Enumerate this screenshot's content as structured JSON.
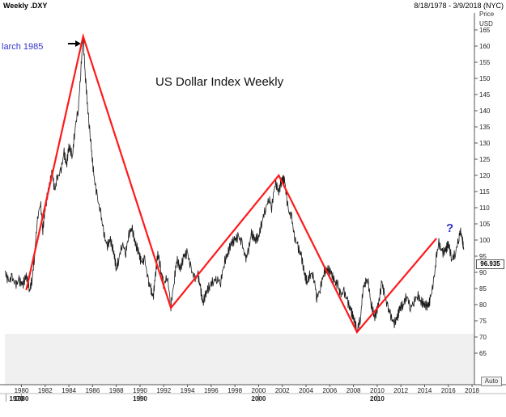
{
  "header": {
    "title": "Weekly .DXY",
    "date_range": "8/18/1978 - 3/9/2018 (NYC)"
  },
  "axis_labels": {
    "price": "Price",
    "currency": "USD"
  },
  "controls": {
    "auto_label": "Auto"
  },
  "current_value": "96.935",
  "colors": {
    "price_line": "#1a1a1a",
    "trend_line": "#ff1a1a",
    "annotation_blue": "#3333cc",
    "shade": "#f0f0f0"
  },
  "chart_data": {
    "type": "line",
    "title": "US Dollar Index Weekly",
    "xlim": [
      1978.6,
      2018.2
    ],
    "ylim": [
      62,
      170
    ],
    "y_ticks": [
      65,
      70,
      75,
      80,
      85,
      90,
      95,
      100,
      105,
      110,
      115,
      120,
      125,
      130,
      135,
      140,
      145,
      150,
      155,
      160,
      165
    ],
    "x_ticks": [
      "1980",
      "1982",
      "1984",
      "1986",
      "1988",
      "1990",
      "1992",
      "1994",
      "1996",
      "1998",
      "2000",
      "2002",
      "2004",
      "2006",
      "2008",
      "2010",
      "2012",
      "2014",
      "2016",
      "2018"
    ],
    "decade_labels": [
      {
        "year": "1970",
        "x": 1978.7
      },
      {
        "year": "1980",
        "x": 1980.0
      },
      {
        "year": "1990",
        "x": 1990.0
      },
      {
        "year": "2000",
        "x": 2000.0
      },
      {
        "year": "2010",
        "x": 2010.0
      }
    ],
    "series": [
      {
        "values": [
          [
            1978.6,
            90.5
          ],
          [
            1978.9,
            87
          ],
          [
            1979.2,
            88.5
          ],
          [
            1979.5,
            86
          ],
          [
            1979.8,
            87.5
          ],
          [
            1980.1,
            86
          ],
          [
            1980.4,
            89
          ],
          [
            1980.7,
            84.5
          ],
          [
            1980.9,
            88
          ],
          [
            1981.1,
            95
          ],
          [
            1981.3,
            105
          ],
          [
            1981.6,
            112
          ],
          [
            1981.8,
            103
          ],
          [
            1982.0,
            110
          ],
          [
            1982.3,
            116
          ],
          [
            1982.6,
            121
          ],
          [
            1982.8,
            115
          ],
          [
            1983.0,
            119
          ],
          [
            1983.3,
            121
          ],
          [
            1983.6,
            127
          ],
          [
            1983.8,
            123
          ],
          [
            1984.0,
            129
          ],
          [
            1984.3,
            126
          ],
          [
            1984.5,
            134
          ],
          [
            1984.8,
            141
          ],
          [
            1985.0,
            152
          ],
          [
            1985.2,
            163
          ],
          [
            1985.4,
            150
          ],
          [
            1985.6,
            140
          ],
          [
            1985.9,
            128
          ],
          [
            1986.1,
            120
          ],
          [
            1986.4,
            113
          ],
          [
            1986.7,
            108
          ],
          [
            1986.9,
            103
          ],
          [
            1987.2,
            98
          ],
          [
            1987.5,
            100
          ],
          [
            1987.8,
            96
          ],
          [
            1988.0,
            91
          ],
          [
            1988.2,
            94
          ],
          [
            1988.5,
            99
          ],
          [
            1988.8,
            96
          ],
          [
            1989.0,
            101
          ],
          [
            1989.3,
            104
          ],
          [
            1989.6,
            99
          ],
          [
            1989.9,
            96
          ],
          [
            1990.1,
            93
          ],
          [
            1990.4,
            94
          ],
          [
            1990.7,
            87
          ],
          [
            1990.9,
            85
          ],
          [
            1991.1,
            82
          ],
          [
            1991.3,
            89
          ],
          [
            1991.5,
            96
          ],
          [
            1991.8,
            90
          ],
          [
            1992.0,
            86
          ],
          [
            1992.3,
            89
          ],
          [
            1992.6,
            79.5
          ],
          [
            1992.9,
            88
          ],
          [
            1993.1,
            94
          ],
          [
            1993.4,
            91
          ],
          [
            1993.7,
            95
          ],
          [
            1994.0,
            96
          ],
          [
            1994.3,
            91
          ],
          [
            1994.6,
            88
          ],
          [
            1994.9,
            89
          ],
          [
            1995.1,
            85
          ],
          [
            1995.3,
            80.5
          ],
          [
            1995.6,
            84
          ],
          [
            1995.9,
            86
          ],
          [
            1996.2,
            87.5
          ],
          [
            1996.5,
            88
          ],
          [
            1996.8,
            87
          ],
          [
            1997.1,
            93
          ],
          [
            1997.4,
            96
          ],
          [
            1997.7,
            99
          ],
          [
            1998.0,
            100
          ],
          [
            1998.3,
            101
          ],
          [
            1998.6,
            99
          ],
          [
            1998.9,
            94
          ],
          [
            1999.1,
            96
          ],
          [
            1999.4,
            102
          ],
          [
            1999.7,
            100
          ],
          [
            2000.0,
            101
          ],
          [
            2000.3,
            106
          ],
          [
            2000.6,
            110
          ],
          [
            2000.9,
            113
          ],
          [
            2001.1,
            110
          ],
          [
            2001.4,
            118
          ],
          [
            2001.7,
            115
          ],
          [
            2002.0,
            119
          ],
          [
            2002.2,
            118
          ],
          [
            2002.5,
            109
          ],
          [
            2002.8,
            107
          ],
          [
            2003.0,
            101
          ],
          [
            2003.3,
            98
          ],
          [
            2003.6,
            95
          ],
          [
            2003.9,
            89
          ],
          [
            2004.1,
            87
          ],
          [
            2004.4,
            90
          ],
          [
            2004.7,
            88
          ],
          [
            2004.9,
            82
          ],
          [
            2005.2,
            85
          ],
          [
            2005.5,
            90
          ],
          [
            2005.8,
            91
          ],
          [
            2006.1,
            90
          ],
          [
            2006.4,
            87
          ],
          [
            2006.7,
            86
          ],
          [
            2006.9,
            83
          ],
          [
            2007.2,
            84
          ],
          [
            2007.5,
            81
          ],
          [
            2007.8,
            78
          ],
          [
            2008.0,
            76
          ],
          [
            2008.3,
            72
          ],
          [
            2008.6,
            76
          ],
          [
            2008.8,
            85
          ],
          [
            2009.0,
            87
          ],
          [
            2009.2,
            88
          ],
          [
            2009.5,
            80
          ],
          [
            2009.8,
            76
          ],
          [
            2010.1,
            80
          ],
          [
            2010.4,
            87
          ],
          [
            2010.6,
            83
          ],
          [
            2010.9,
            79
          ],
          [
            2011.1,
            77
          ],
          [
            2011.4,
            74
          ],
          [
            2011.7,
            76
          ],
          [
            2011.9,
            79
          ],
          [
            2012.2,
            80
          ],
          [
            2012.5,
            83
          ],
          [
            2012.8,
            79
          ],
          [
            2013.1,
            81
          ],
          [
            2013.4,
            83
          ],
          [
            2013.7,
            81
          ],
          [
            2014.0,
            80
          ],
          [
            2014.3,
            79.5
          ],
          [
            2014.5,
            82
          ],
          [
            2014.8,
            88
          ],
          [
            2015.0,
            95
          ],
          [
            2015.2,
            99
          ],
          [
            2015.5,
            96
          ],
          [
            2015.8,
            97
          ],
          [
            2016.0,
            99
          ],
          [
            2016.3,
            94
          ],
          [
            2016.6,
            96
          ],
          [
            2016.9,
            101
          ],
          [
            2017.0,
            103
          ],
          [
            2017.2,
            100
          ],
          [
            2017.3,
            97
          ]
        ]
      },
      {
        "values": [
          [
            1980.4,
            84.5
          ],
          [
            1985.2,
            163
          ],
          [
            1992.6,
            79
          ],
          [
            2001.7,
            120
          ],
          [
            2008.3,
            71.5
          ],
          [
            2015.0,
            100.5
          ]
        ]
      }
    ],
    "annotations": [
      {
        "text": "larch 1985",
        "x": 1978.6,
        "y": 163.5
      },
      {
        "text": "?",
        "x": 2016.1,
        "y": 108
      }
    ]
  }
}
